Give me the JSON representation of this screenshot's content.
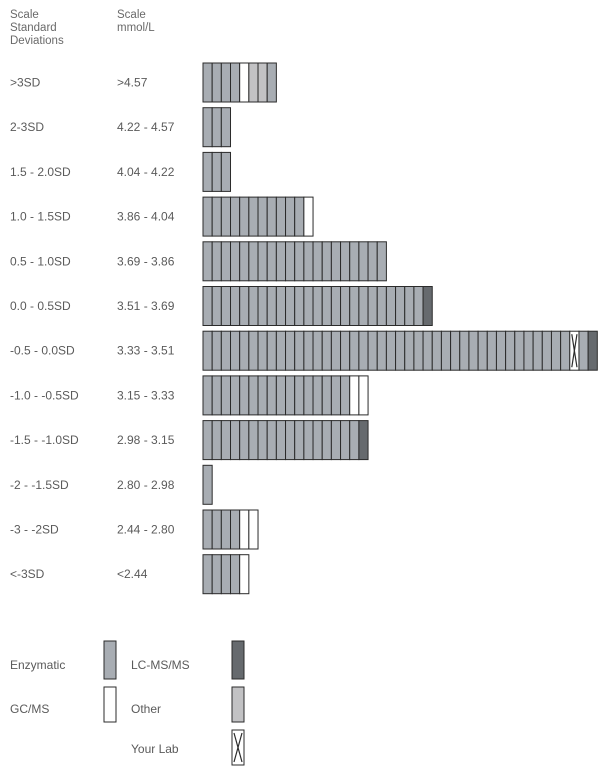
{
  "chart_data": {
    "type": "bar",
    "orientation": "horizontal",
    "title": "",
    "headers": {
      "sd": [
        "Scale",
        "Standard",
        "Deviations"
      ],
      "mmol": [
        "Scale",
        "mmol/L"
      ]
    },
    "rows": [
      {
        "sd": ">3SD",
        "range": ">4.57",
        "cells": [
          "E",
          "E",
          "E",
          "E",
          "G",
          "O",
          "O",
          "E"
        ]
      },
      {
        "sd": "2-3SD",
        "range": "4.22 - 4.57",
        "cells": [
          "E",
          "E",
          "E"
        ]
      },
      {
        "sd": "1.5 - 2.0SD",
        "range": "4.04 - 4.22",
        "cells": [
          "E",
          "E",
          "E"
        ]
      },
      {
        "sd": "1.0 - 1.5SD",
        "range": "3.86 - 4.04",
        "cells": [
          "E",
          "E",
          "E",
          "E",
          "E",
          "E",
          "E",
          "E",
          "E",
          "E",
          "E",
          "G"
        ]
      },
      {
        "sd": "0.5 - 1.0SD",
        "range": "3.69 - 3.86",
        "cells": [
          "E",
          "E",
          "E",
          "E",
          "E",
          "E",
          "E",
          "E",
          "E",
          "E",
          "E",
          "E",
          "E",
          "E",
          "E",
          "E",
          "E",
          "E",
          "E",
          "E"
        ]
      },
      {
        "sd": "0.0 - 0.5SD",
        "range": "3.51 - 3.69",
        "cells": [
          "E",
          "E",
          "E",
          "E",
          "E",
          "E",
          "E",
          "E",
          "E",
          "E",
          "E",
          "E",
          "E",
          "E",
          "E",
          "E",
          "E",
          "E",
          "E",
          "E",
          "E",
          "E",
          "E",
          "E",
          "L"
        ]
      },
      {
        "sd": "-0.5 - 0.0SD",
        "range": "3.33 - 3.51",
        "cells": [
          "E",
          "E",
          "E",
          "E",
          "E",
          "E",
          "E",
          "E",
          "E",
          "E",
          "E",
          "E",
          "E",
          "E",
          "E",
          "E",
          "E",
          "E",
          "E",
          "E",
          "E",
          "E",
          "E",
          "E",
          "E",
          "E",
          "E",
          "E",
          "E",
          "E",
          "E",
          "E",
          "E",
          "E",
          "E",
          "E",
          "E",
          "E",
          "E",
          "E",
          "Y",
          "E",
          "L"
        ]
      },
      {
        "sd": "-1.0 - -0.5SD",
        "range": "3.15 - 3.33",
        "cells": [
          "E",
          "E",
          "E",
          "E",
          "E",
          "E",
          "E",
          "E",
          "E",
          "E",
          "E",
          "E",
          "E",
          "E",
          "E",
          "E",
          "G",
          "G"
        ]
      },
      {
        "sd": "-1.5 - -1.0SD",
        "range": "2.98 - 3.15",
        "cells": [
          "E",
          "E",
          "E",
          "E",
          "E",
          "E",
          "E",
          "E",
          "E",
          "E",
          "E",
          "E",
          "E",
          "E",
          "E",
          "E",
          "E",
          "L"
        ]
      },
      {
        "sd": "-2 - -1.5SD",
        "range": "2.80 - 2.98",
        "cells": [
          "E"
        ]
      },
      {
        "sd": "-3 - -2SD",
        "range": "2.44 - 2.80",
        "cells": [
          "E",
          "E",
          "E",
          "E",
          "G",
          "G"
        ]
      },
      {
        "sd": "<-3SD",
        "range": "<2.44",
        "cells": [
          "E",
          "E",
          "E",
          "E",
          "G"
        ]
      }
    ],
    "legend": [
      {
        "key": "E",
        "label": "Enzymatic"
      },
      {
        "key": "G",
        "label": "GC/MS"
      },
      {
        "key": "L",
        "label": "LC-MS/MS"
      },
      {
        "key": "O",
        "label": "Other"
      },
      {
        "key": "Y",
        "label": "Your Lab"
      }
    ],
    "colors": {
      "E": "#a8adb3",
      "G": "#ffffff",
      "L": "#666a6e",
      "O": "#c2c2c4",
      "Y": "#ffffff",
      "stroke": "#2b2b2b"
    }
  }
}
